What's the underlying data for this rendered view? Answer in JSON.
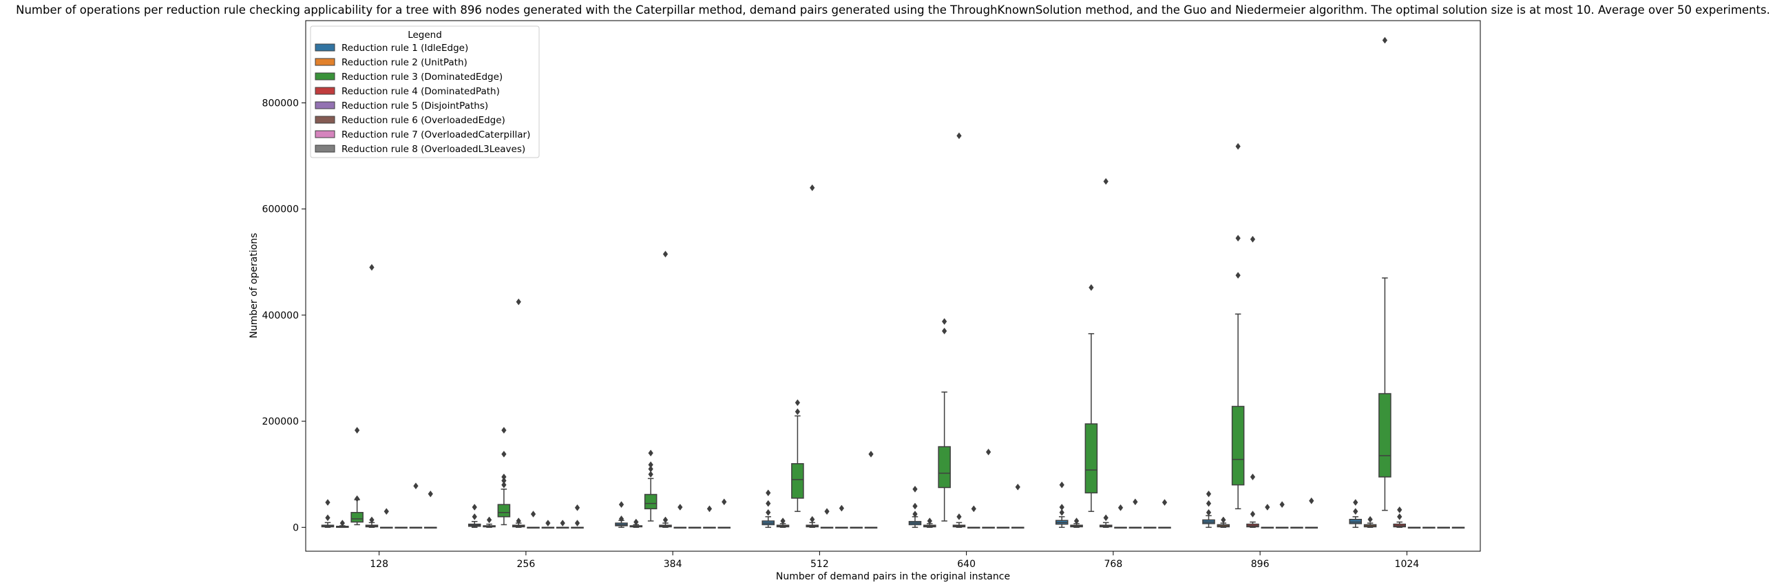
{
  "chart_data": {
    "type": "box",
    "title": "Number of operations per reduction rule checking applicability for a tree with 896 nodes generated with the Caterpillar method, demand pairs generated using the ThroughKnownSolution method, and the Guo and Niedermeier algorithm. The optimal solution size is at most 10. Average over 50 experiments.",
    "xlabel": "Number of demand pairs in the original instance",
    "ylabel": "Number of operations",
    "categories": [
      "128",
      "256",
      "384",
      "512",
      "640",
      "768",
      "896",
      "1024"
    ],
    "yticks": [
      0,
      200000,
      400000,
      600000,
      800000
    ],
    "ytick_labels": [
      "0",
      "200000",
      "400000",
      "600000",
      "800000"
    ],
    "ylim": [
      -45000,
      955000
    ],
    "legend": {
      "title": "Legend",
      "placement": "top-left"
    },
    "series": [
      {
        "name": "Reduction rule 1 (IdleEdge)",
        "color": "#3274a1",
        "boxes": [
          {
            "q1": 1000,
            "med": 2000,
            "q3": 4000,
            "wlo": 0,
            "whi": 9000,
            "outliers": [
              18000,
              47000
            ]
          },
          {
            "q1": 2000,
            "med": 4000,
            "q3": 6000,
            "wlo": 0,
            "whi": 11000,
            "outliers": [
              20000,
              38000
            ]
          },
          {
            "q1": 3000,
            "med": 5000,
            "q3": 8000,
            "wlo": 0,
            "whi": 13000,
            "outliers": [
              16000,
              43000
            ]
          },
          {
            "q1": 5000,
            "med": 8000,
            "q3": 12000,
            "wlo": 0,
            "whi": 20000,
            "outliers": [
              28000,
              45000,
              65000
            ]
          },
          {
            "q1": 5000,
            "med": 8000,
            "q3": 11000,
            "wlo": 0,
            "whi": 20000,
            "outliers": [
              25000,
              40000,
              72000
            ]
          },
          {
            "q1": 6000,
            "med": 9000,
            "q3": 13000,
            "wlo": 0,
            "whi": 20000,
            "outliers": [
              28000,
              38000,
              80000
            ]
          },
          {
            "q1": 7000,
            "med": 10000,
            "q3": 14000,
            "wlo": 0,
            "whi": 22000,
            "outliers": [
              28000,
              45000,
              63000
            ]
          },
          {
            "q1": 7000,
            "med": 10000,
            "q3": 15000,
            "wlo": 0,
            "whi": 20000,
            "outliers": [
              30000,
              47000
            ]
          }
        ]
      },
      {
        "name": "Reduction rule 2 (UnitPath)",
        "color": "#e1812c",
        "boxes": [
          {
            "q1": 0,
            "med": 1000,
            "q3": 2000,
            "wlo": 0,
            "whi": 3000,
            "outliers": [
              8000
            ]
          },
          {
            "q1": 1000,
            "med": 2000,
            "q3": 3000,
            "wlo": 0,
            "whi": 6000,
            "outliers": [
              14000
            ]
          },
          {
            "q1": 1000,
            "med": 2000,
            "q3": 3000,
            "wlo": 0,
            "whi": 5000,
            "outliers": [
              10000
            ]
          },
          {
            "q1": 1000,
            "med": 2000,
            "q3": 4000,
            "wlo": 0,
            "whi": 7000,
            "outliers": [
              12000
            ]
          },
          {
            "q1": 1000,
            "med": 2000,
            "q3": 4000,
            "wlo": 0,
            "whi": 7000,
            "outliers": [
              12000
            ]
          },
          {
            "q1": 1000,
            "med": 2000,
            "q3": 4000,
            "wlo": 0,
            "whi": 7000,
            "outliers": [
              12000
            ]
          },
          {
            "q1": 1000,
            "med": 3000,
            "q3": 5000,
            "wlo": 0,
            "whi": 8000,
            "outliers": [
              14000
            ]
          },
          {
            "q1": 1000,
            "med": 3000,
            "q3": 5000,
            "wlo": 0,
            "whi": 8000,
            "outliers": [
              15000
            ]
          }
        ]
      },
      {
        "name": "Reduction rule 3 (DominatedEdge)",
        "color": "#3a923a",
        "boxes": [
          {
            "q1": 10000,
            "med": 16000,
            "q3": 28000,
            "wlo": 5000,
            "whi": 52000,
            "outliers": [
              54000,
              183000
            ]
          },
          {
            "q1": 20000,
            "med": 28000,
            "q3": 43000,
            "wlo": 5000,
            "whi": 72000,
            "outliers": [
              80000,
              88000,
              95000,
              138000,
              183000
            ]
          },
          {
            "q1": 35000,
            "med": 45000,
            "q3": 62000,
            "wlo": 12000,
            "whi": 92000,
            "outliers": [
              100000,
              110000,
              118000,
              140000
            ]
          },
          {
            "q1": 55000,
            "med": 90000,
            "q3": 120000,
            "wlo": 30000,
            "whi": 210000,
            "outliers": [
              218000,
              235000
            ]
          },
          {
            "q1": 75000,
            "med": 102000,
            "q3": 152000,
            "wlo": 12000,
            "whi": 255000,
            "outliers": [
              370000,
              388000
            ]
          },
          {
            "q1": 65000,
            "med": 108000,
            "q3": 195000,
            "wlo": 30000,
            "whi": 365000,
            "outliers": [
              452000
            ]
          },
          {
            "q1": 80000,
            "med": 128000,
            "q3": 228000,
            "wlo": 35000,
            "whi": 402000,
            "outliers": [
              475000,
              545000,
              718000
            ]
          },
          {
            "q1": 95000,
            "med": 135000,
            "q3": 252000,
            "wlo": 32000,
            "whi": 470000,
            "outliers": [
              918000
            ]
          }
        ]
      },
      {
        "name": "Reduction rule 4 (DominatedPath)",
        "color": "#c03d3e",
        "boxes": [
          {
            "q1": 1000,
            "med": 2000,
            "q3": 4000,
            "wlo": 0,
            "whi": 9000,
            "outliers": [
              14000,
              490000
            ]
          },
          {
            "q1": 1000,
            "med": 2000,
            "q3": 4000,
            "wlo": 0,
            "whi": 8000,
            "outliers": [
              12000,
              425000
            ]
          },
          {
            "q1": 1000,
            "med": 2000,
            "q3": 4000,
            "wlo": 0,
            "whi": 8000,
            "outliers": [
              14000,
              515000
            ]
          },
          {
            "q1": 1000,
            "med": 2000,
            "q3": 4000,
            "wlo": 0,
            "whi": 9000,
            "outliers": [
              15000,
              640000
            ]
          },
          {
            "q1": 1000,
            "med": 2000,
            "q3": 4000,
            "wlo": 0,
            "whi": 9000,
            "outliers": [
              20000,
              738000
            ]
          },
          {
            "q1": 1000,
            "med": 2000,
            "q3": 4000,
            "wlo": 0,
            "whi": 9000,
            "outliers": [
              18000,
              652000
            ]
          },
          {
            "q1": 1000,
            "med": 3000,
            "q3": 6000,
            "wlo": 0,
            "whi": 10000,
            "outliers": [
              25000,
              95000,
              543000
            ]
          },
          {
            "q1": 1000,
            "med": 3000,
            "q3": 6000,
            "wlo": 0,
            "whi": 10000,
            "outliers": [
              20000,
              33000
            ]
          }
        ]
      },
      {
        "name": "Reduction rule 5 (DisjointPaths)",
        "color": "#9372b2",
        "boxes": [
          {
            "q1": 0,
            "med": 0,
            "q3": 0,
            "wlo": 0,
            "whi": 0,
            "outliers": [
              30000
            ]
          },
          {
            "q1": 0,
            "med": 0,
            "q3": 0,
            "wlo": 0,
            "whi": 0,
            "outliers": [
              25000
            ]
          },
          {
            "q1": 0,
            "med": 0,
            "q3": 0,
            "wlo": 0,
            "whi": 0,
            "outliers": [
              38000
            ]
          },
          {
            "q1": 0,
            "med": 0,
            "q3": 0,
            "wlo": 0,
            "whi": 0,
            "outliers": [
              30000
            ]
          },
          {
            "q1": 0,
            "med": 0,
            "q3": 0,
            "wlo": 0,
            "whi": 0,
            "outliers": [
              35000
            ]
          },
          {
            "q1": 0,
            "med": 0,
            "q3": 0,
            "wlo": 0,
            "whi": 0,
            "outliers": [
              37000
            ]
          },
          {
            "q1": 0,
            "med": 0,
            "q3": 0,
            "wlo": 0,
            "whi": 0,
            "outliers": [
              38000
            ]
          },
          {
            "q1": 0,
            "med": 0,
            "q3": 0,
            "wlo": 0,
            "whi": 0,
            "outliers": []
          }
        ]
      },
      {
        "name": "Reduction rule 6 (OverloadedEdge)",
        "color": "#845b53",
        "boxes": [
          {
            "q1": 0,
            "med": 0,
            "q3": 0,
            "wlo": 0,
            "whi": 0,
            "outliers": []
          },
          {
            "q1": 0,
            "med": 0,
            "q3": 0,
            "wlo": 0,
            "whi": 0,
            "outliers": [
              8000
            ]
          },
          {
            "q1": 0,
            "med": 0,
            "q3": 0,
            "wlo": 0,
            "whi": 0,
            "outliers": []
          },
          {
            "q1": 0,
            "med": 0,
            "q3": 0,
            "wlo": 0,
            "whi": 0,
            "outliers": [
              36000
            ]
          },
          {
            "q1": 0,
            "med": 0,
            "q3": 0,
            "wlo": 0,
            "whi": 0,
            "outliers": [
              142000
            ]
          },
          {
            "q1": 0,
            "med": 0,
            "q3": 0,
            "wlo": 0,
            "whi": 0,
            "outliers": [
              48000
            ]
          },
          {
            "q1": 0,
            "med": 0,
            "q3": 0,
            "wlo": 0,
            "whi": 0,
            "outliers": [
              43000
            ]
          },
          {
            "q1": 0,
            "med": 0,
            "q3": 0,
            "wlo": 0,
            "whi": 0,
            "outliers": []
          }
        ]
      },
      {
        "name": "Reduction rule 7 (OverloadedCaterpillar)",
        "color": "#d584bd",
        "boxes": [
          {
            "q1": 0,
            "med": 0,
            "q3": 0,
            "wlo": 0,
            "whi": 0,
            "outliers": [
              78000
            ]
          },
          {
            "q1": 0,
            "med": 0,
            "q3": 0,
            "wlo": 0,
            "whi": 0,
            "outliers": [
              8000
            ]
          },
          {
            "q1": 0,
            "med": 0,
            "q3": 0,
            "wlo": 0,
            "whi": 0,
            "outliers": [
              35000
            ]
          },
          {
            "q1": 0,
            "med": 0,
            "q3": 0,
            "wlo": 0,
            "whi": 0,
            "outliers": []
          },
          {
            "q1": 0,
            "med": 0,
            "q3": 0,
            "wlo": 0,
            "whi": 0,
            "outliers": []
          },
          {
            "q1": 0,
            "med": 0,
            "q3": 0,
            "wlo": 0,
            "whi": 0,
            "outliers": []
          },
          {
            "q1": 0,
            "med": 0,
            "q3": 0,
            "wlo": 0,
            "whi": 0,
            "outliers": []
          },
          {
            "q1": 0,
            "med": 0,
            "q3": 0,
            "wlo": 0,
            "whi": 0,
            "outliers": []
          }
        ]
      },
      {
        "name": "Reduction rule 8 (OverloadedL3Leaves)",
        "color": "#7f7f7f",
        "boxes": [
          {
            "q1": 0,
            "med": 0,
            "q3": 0,
            "wlo": 0,
            "whi": 0,
            "outliers": [
              63000
            ]
          },
          {
            "q1": 0,
            "med": 0,
            "q3": 0,
            "wlo": 0,
            "whi": 0,
            "outliers": [
              37000,
              8000
            ]
          },
          {
            "q1": 0,
            "med": 0,
            "q3": 0,
            "wlo": 0,
            "whi": 0,
            "outliers": [
              48000
            ]
          },
          {
            "q1": 0,
            "med": 0,
            "q3": 0,
            "wlo": 0,
            "whi": 0,
            "outliers": [
              138000
            ]
          },
          {
            "q1": 0,
            "med": 0,
            "q3": 0,
            "wlo": 0,
            "whi": 0,
            "outliers": [
              76000
            ]
          },
          {
            "q1": 0,
            "med": 0,
            "q3": 0,
            "wlo": 0,
            "whi": 0,
            "outliers": [
              47000
            ]
          },
          {
            "q1": 0,
            "med": 0,
            "q3": 0,
            "wlo": 0,
            "whi": 0,
            "outliers": [
              50000
            ]
          },
          {
            "q1": 0,
            "med": 0,
            "q3": 0,
            "wlo": 0,
            "whi": 0,
            "outliers": []
          }
        ]
      }
    ]
  }
}
